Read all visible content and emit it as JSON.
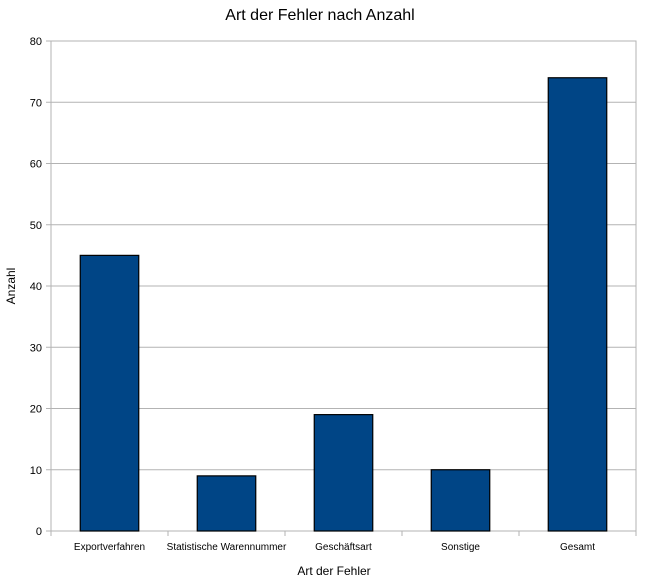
{
  "chart_data": {
    "type": "bar",
    "title": "Art der Fehler nach Anzahl",
    "xlabel": "Art der Fehler",
    "ylabel": "Anzahl",
    "categories": [
      "Exportverfahren",
      "Statistische Warennummer",
      "Geschäftsart",
      "Sonstige",
      "Gesamt"
    ],
    "values": [
      45,
      9,
      19,
      10,
      74
    ],
    "ylim": [
      0,
      80
    ],
    "yticks": [
      0,
      10,
      20,
      30,
      40,
      50,
      60,
      70,
      80
    ],
    "grid": true,
    "legend": "none",
    "colors": {
      "bar_fill": "#004586",
      "bar_stroke": "#000000",
      "grid": "#b3b3b3",
      "axis": "#b3b3b3"
    }
  }
}
